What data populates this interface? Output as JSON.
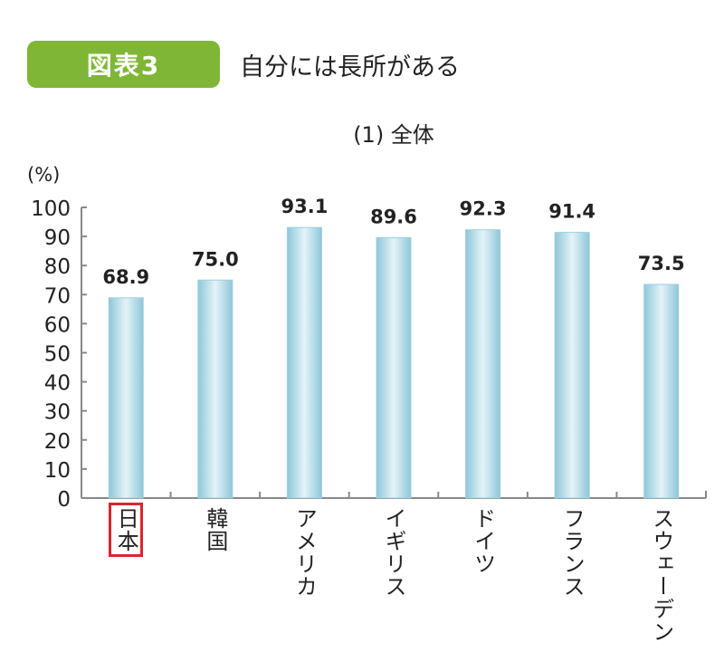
{
  "header": {
    "figure_label": "図表3",
    "title": "自分には長所がある"
  },
  "colors": {
    "badge": "#80b636",
    "bar": "#a8d4e2",
    "highlight": "#d8262e"
  },
  "chart_data": {
    "type": "bar",
    "title": "(1) 全体",
    "ylabel": "(%)",
    "xlabel": "",
    "ylim": [
      0,
      100
    ],
    "yticks": [
      0,
      10,
      20,
      30,
      40,
      50,
      60,
      70,
      80,
      90,
      100
    ],
    "categories": [
      "日本",
      "韓国",
      "アメリカ",
      "イギリス",
      "ドイツ",
      "フランス",
      "スウェーデン"
    ],
    "values": [
      68.9,
      75.0,
      93.1,
      89.6,
      92.3,
      91.4,
      73.5
    ],
    "value_labels": [
      "68.9",
      "75.0",
      "93.1",
      "89.6",
      "92.3",
      "91.4",
      "73.5"
    ],
    "highlighted_category": "日本",
    "grid": false,
    "legend": "none"
  }
}
